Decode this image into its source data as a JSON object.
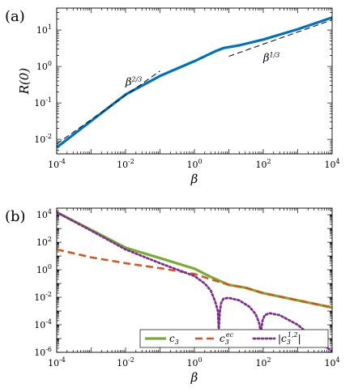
{
  "chart_data": [
    {
      "panel_label": "(a)",
      "type": "line",
      "xlabel": "β",
      "ylabel": "R(0)",
      "xscale": "log",
      "yscale": "log",
      "xlim": [
        0.0001,
        10000
      ],
      "ylim": [
        0.004,
        40
      ],
      "x_ticks": [
        0.0001,
        0.01,
        1,
        100,
        10000
      ],
      "x_tick_labels": [
        [
          "10",
          "-4"
        ],
        [
          "10",
          "-2"
        ],
        [
          "10",
          "0"
        ],
        [
          "10",
          "2"
        ],
        [
          "10",
          "4"
        ]
      ],
      "y_ticks": [
        0.01,
        0.1,
        1,
        10
      ],
      "y_tick_labels": [
        [
          "10",
          "-2"
        ],
        [
          "10",
          "-1"
        ],
        [
          "10",
          "0"
        ],
        [
          "10",
          "1"
        ]
      ],
      "grid": false,
      "series": [
        {
          "style": "solid",
          "color": "#0072bd",
          "x": [
            0.0001,
            0.001,
            0.01,
            0.1,
            1,
            4,
            7,
            20,
            100,
            1000,
            10000
          ],
          "y": [
            0.006,
            0.032,
            0.17,
            0.55,
            1.4,
            2.6,
            3.2,
            3.8,
            5.5,
            10.5,
            22
          ]
        },
        {
          "style": "dashed",
          "color": "#000000",
          "x": [
            0.0001,
            0.1
          ],
          "y": [
            0.0075,
            0.75
          ]
        },
        {
          "style": "dashed",
          "color": "#000000",
          "x": [
            10,
            10000
          ],
          "y": [
            1.9,
            19
          ]
        }
      ],
      "annotations": [
        {
          "base": "β",
          "sup": "2/3",
          "x": 0.01,
          "y": 0.3
        },
        {
          "base": "β",
          "sup": "1/3",
          "x": 100,
          "y": 1.4
        }
      ]
    },
    {
      "panel_label": "(b)",
      "type": "line",
      "xlabel": "β",
      "xscale": "log",
      "yscale": "log",
      "xlim": [
        0.0001,
        10000
      ],
      "ylim": [
        1e-06,
        30000
      ],
      "x_ticks": [
        0.0001,
        0.01,
        1,
        100,
        10000
      ],
      "x_tick_labels": [
        [
          "10",
          "-4"
        ],
        [
          "10",
          "-2"
        ],
        [
          "10",
          "0"
        ],
        [
          "10",
          "2"
        ],
        [
          "10",
          "4"
        ]
      ],
      "y_ticks": [
        1e-06,
        0.0001,
        0.01,
        1,
        100,
        10000
      ],
      "y_tick_labels": [
        [
          "10",
          "-6"
        ],
        [
          "10",
          "-4"
        ],
        [
          "10",
          "-2"
        ],
        [
          "10",
          "0"
        ],
        [
          "10",
          "2"
        ],
        [
          "10",
          "4"
        ]
      ],
      "grid": false,
      "legend_position": "bottom-right",
      "series": [
        {
          "base": "c",
          "sub": "3",
          "sup": "",
          "style": "solid",
          "color": "#77ac30",
          "x": [
            0.0001,
            0.001,
            0.01,
            0.1,
            1,
            3,
            10,
            30,
            100,
            1000,
            10000
          ],
          "y": [
            15000,
            800,
            40,
            7,
            1.2,
            0.3,
            0.08,
            0.05,
            0.02,
            0.006,
            0.0018
          ]
        },
        {
          "base": "c",
          "sub": "3",
          "sup": "ec",
          "style": "dashed",
          "color": "#d95319",
          "x": [
            0.0001,
            0.001,
            0.01,
            0.1,
            1,
            3,
            10,
            30,
            100,
            1000,
            10000
          ],
          "y": [
            30,
            8,
            3,
            1.3,
            0.5,
            0.2,
            0.08,
            0.05,
            0.02,
            0.006,
            0.0018
          ]
        },
        {
          "base": "|c",
          "sub": "3",
          "sup": "1,2",
          "close": "|",
          "style": "dotted",
          "color": "#7e2f8e",
          "x": [
            0.0001,
            0.001,
            0.01,
            0.1,
            1,
            2,
            3,
            4,
            4.8,
            5.1,
            5.5,
            6,
            7,
            10,
            20,
            40,
            60,
            75,
            85,
            95,
            110,
            150,
            300,
            1000,
            3000,
            10000
          ],
          "y": [
            15000,
            700,
            30,
            3,
            0.35,
            0.1,
            0.03,
            0.005,
            0.001,
            5e-05,
            0.001,
            0.004,
            0.008,
            0.009,
            0.006,
            0.002,
            0.0006,
            0.00015,
            3e-05,
            0.0002,
            0.0005,
            0.0007,
            0.0005,
            0.0001,
            1e-05,
            1.2e-06
          ]
        }
      ]
    }
  ]
}
